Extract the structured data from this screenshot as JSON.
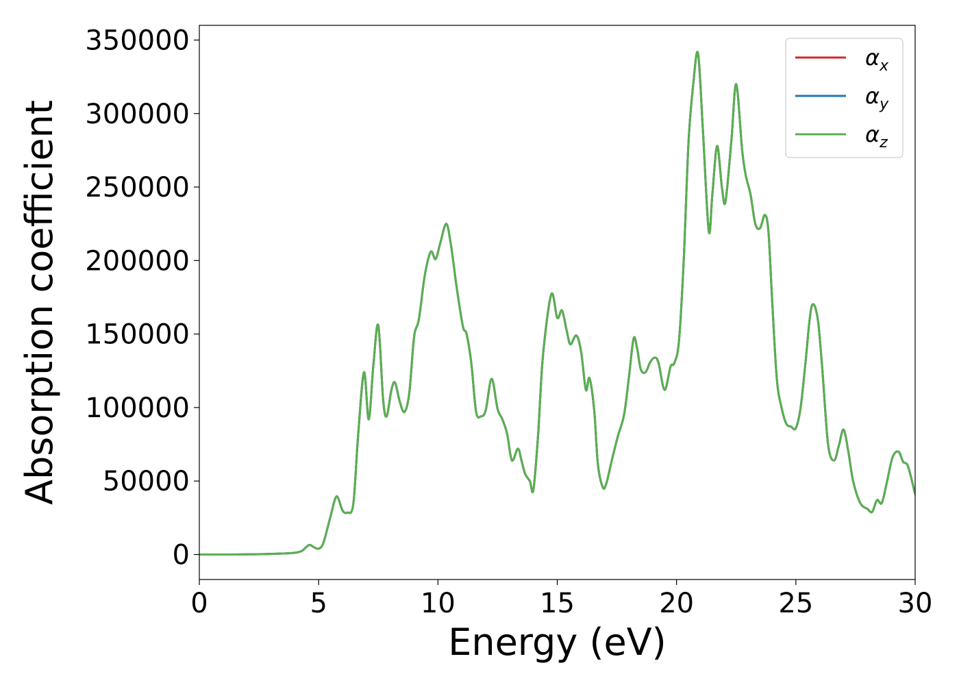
{
  "chart_data": {
    "type": "line",
    "xlabel": "Energy (eV)",
    "ylabel": "Absorption coefficient",
    "xlim": [
      0,
      30
    ],
    "ylim": [
      -17000,
      360000
    ],
    "xticks": [
      0,
      5,
      10,
      15,
      20,
      25,
      30
    ],
    "yticks": [
      0,
      50000,
      100000,
      150000,
      200000,
      250000,
      300000,
      350000
    ],
    "grid": false,
    "legend_position": "top-right",
    "x": [
      0,
      1,
      2,
      3,
      3.5,
      4,
      4.3,
      4.6,
      4.8,
      5.0,
      5.2,
      5.5,
      5.75,
      6.0,
      6.2,
      6.45,
      6.65,
      6.9,
      7.1,
      7.3,
      7.5,
      7.7,
      7.85,
      8.05,
      8.2,
      8.4,
      8.6,
      8.8,
      9.0,
      9.2,
      9.45,
      9.7,
      9.9,
      10.1,
      10.35,
      10.55,
      10.8,
      11.05,
      11.2,
      11.4,
      11.6,
      11.8,
      12.0,
      12.25,
      12.5,
      12.7,
      12.9,
      13.1,
      13.35,
      13.5,
      13.65,
      13.85,
      14.0,
      14.2,
      14.4,
      14.75,
      15.0,
      15.2,
      15.4,
      15.55,
      15.8,
      16.0,
      16.2,
      16.35,
      16.55,
      16.7,
      16.9,
      17.05,
      17.3,
      17.55,
      17.8,
      18.0,
      18.2,
      18.35,
      18.5,
      18.7,
      18.9,
      19.1,
      19.25,
      19.5,
      19.75,
      19.9,
      20.1,
      20.3,
      20.5,
      20.7,
      20.9,
      21.1,
      21.35,
      21.5,
      21.7,
      21.9,
      22.05,
      22.3,
      22.5,
      22.75,
      22.9,
      23.1,
      23.3,
      23.5,
      23.7,
      23.85,
      24.0,
      24.2,
      24.4,
      24.6,
      24.8,
      25.0,
      25.2,
      25.4,
      25.65,
      25.9,
      26.1,
      26.35,
      26.6,
      26.8,
      27.0,
      27.2,
      27.4,
      27.7,
      28.0,
      28.2,
      28.4,
      28.6,
      28.8,
      29.05,
      29.3,
      29.5,
      29.7,
      30.0
    ],
    "series": [
      {
        "name": "α_x",
        "color": "#d62728",
        "values": [
          0,
          0,
          100,
          400,
          700,
          1200,
          2500,
          6500,
          5000,
          4000,
          8000,
          26000,
          39500,
          30000,
          28500,
          34000,
          80000,
          124000,
          92000,
          130000,
          156000,
          106000,
          94000,
          112000,
          117000,
          104000,
          97000,
          110000,
          148000,
          160000,
          190000,
          206000,
          201000,
          212000,
          225000,
          210000,
          180000,
          155000,
          150000,
          130000,
          97000,
          94000,
          98000,
          119500,
          99000,
          92000,
          82000,
          64000,
          72000,
          64000,
          55000,
          50000,
          44000,
          82000,
          135000,
          177000,
          161000,
          166000,
          152000,
          143000,
          149000,
          138000,
          112000,
          120000,
          98000,
          62000,
          46000,
          48000,
          65000,
          81000,
          95000,
          120000,
          147000,
          140000,
          126000,
          124000,
          131000,
          134000,
          130000,
          112000,
          128000,
          130000,
          145000,
          200000,
          280000,
          320000,
          341000,
          290000,
          220000,
          245000,
          278000,
          250000,
          240000,
          282000,
          320000,
          275000,
          258000,
          245000,
          225000,
          222000,
          231000,
          220000,
          175000,
          120000,
          100000,
          89000,
          87000,
          86000,
          100000,
          130000,
          168000,
          162000,
          128000,
          75000,
          64000,
          74000,
          85000,
          70000,
          50000,
          35000,
          31000,
          29000,
          37000,
          35000,
          48000,
          66000,
          70000,
          63000,
          60000,
          41000
        ]
      },
      {
        "name": "α_y",
        "color": "#1f77b4",
        "values": [
          0,
          0,
          100,
          400,
          700,
          1200,
          2500,
          6500,
          5000,
          4000,
          8000,
          26000,
          39500,
          30000,
          28500,
          34000,
          80000,
          124000,
          92000,
          130000,
          156000,
          106000,
          94000,
          112000,
          117000,
          104000,
          97000,
          110000,
          148000,
          160000,
          190000,
          206000,
          201000,
          212000,
          225000,
          210000,
          180000,
          155000,
          150000,
          130000,
          97000,
          94000,
          98000,
          119500,
          99000,
          92000,
          82000,
          64000,
          72000,
          64000,
          55000,
          50000,
          44000,
          82000,
          135000,
          177000,
          161000,
          166000,
          152000,
          143000,
          149000,
          138000,
          112000,
          120000,
          98000,
          62000,
          46000,
          48000,
          65000,
          81000,
          95000,
          120000,
          147000,
          140000,
          126000,
          124000,
          131000,
          134000,
          130000,
          112000,
          128000,
          130000,
          145000,
          200000,
          280000,
          320000,
          341000,
          290000,
          220000,
          245000,
          278000,
          250000,
          240000,
          282000,
          320000,
          275000,
          258000,
          245000,
          225000,
          222000,
          231000,
          220000,
          175000,
          120000,
          100000,
          89000,
          87000,
          86000,
          100000,
          130000,
          168000,
          162000,
          128000,
          75000,
          64000,
          74000,
          85000,
          70000,
          50000,
          35000,
          31000,
          29000,
          37000,
          35000,
          48000,
          66000,
          70000,
          63000,
          60000,
          41000
        ]
      },
      {
        "name": "α_z",
        "color": "#5aaf50",
        "values": [
          0,
          0,
          100,
          400,
          700,
          1200,
          2500,
          6500,
          5000,
          4000,
          8000,
          26000,
          39500,
          30000,
          28500,
          34000,
          80000,
          124000,
          92000,
          130000,
          156000,
          106000,
          94000,
          112000,
          117000,
          104000,
          97000,
          110000,
          148000,
          160000,
          190000,
          206000,
          201000,
          212000,
          225000,
          210000,
          180000,
          155000,
          150000,
          130000,
          97000,
          94000,
          98000,
          119500,
          99000,
          92000,
          82000,
          64000,
          72000,
          64000,
          55000,
          50000,
          44000,
          82000,
          135000,
          177000,
          161000,
          166000,
          152000,
          143000,
          149000,
          138000,
          112000,
          120000,
          98000,
          62000,
          46000,
          48000,
          65000,
          81000,
          95000,
          120000,
          147000,
          140000,
          126000,
          124000,
          131000,
          134000,
          130000,
          112000,
          128000,
          130000,
          145000,
          200000,
          280000,
          320000,
          341000,
          290000,
          220000,
          245000,
          278000,
          250000,
          240000,
          282000,
          320000,
          275000,
          258000,
          245000,
          225000,
          222000,
          231000,
          220000,
          175000,
          120000,
          100000,
          89000,
          87000,
          86000,
          100000,
          130000,
          168000,
          162000,
          128000,
          75000,
          64000,
          74000,
          85000,
          70000,
          50000,
          35000,
          31000,
          29000,
          37000,
          35000,
          48000,
          66000,
          70000,
          63000,
          60000,
          41000
        ]
      }
    ],
    "legend": [
      {
        "symbol": "α",
        "sub": "x",
        "color": "#d62728"
      },
      {
        "symbol": "α",
        "sub": "y",
        "color": "#1f77b4"
      },
      {
        "symbol": "α",
        "sub": "z",
        "color": "#5aaf50"
      }
    ]
  }
}
